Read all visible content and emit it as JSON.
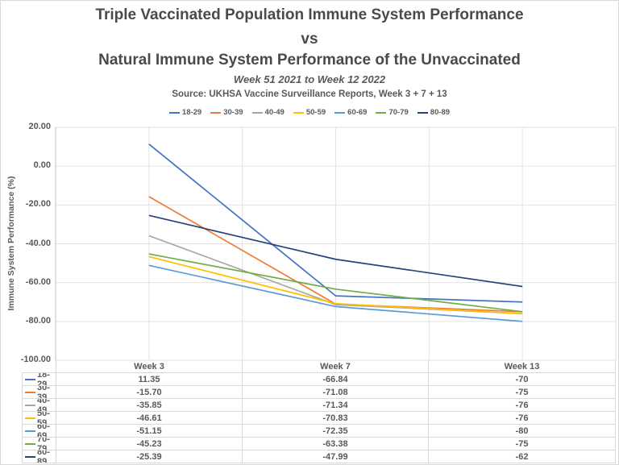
{
  "header": {
    "title_line1": "Triple Vaccinated Population Immune System Performance",
    "title_vs": "vs",
    "title_line2": "Natural Immune System Performance of the Unvaccinated",
    "subtitle": "Week 51 2021 to Week 12 2022",
    "source": "Source: UKHSA Vaccine Surveillance Reports, Week 3 + 7 + 13"
  },
  "y_axis": {
    "title": "Immune System Performance (%)",
    "ticks": [
      {
        "label": "20.00",
        "value": 20
      },
      {
        "label": "0.00",
        "value": 0
      },
      {
        "label": "-20.00",
        "value": -20
      },
      {
        "label": "-40.00",
        "value": -40
      },
      {
        "label": "-60.00",
        "value": -60
      },
      {
        "label": "-80.00",
        "value": -80
      },
      {
        "label": "-100.00",
        "value": -100
      }
    ]
  },
  "chart_data": {
    "type": "line",
    "categories": [
      "Week 3",
      "Week 7",
      "Week 13"
    ],
    "series": [
      {
        "name": "18-29",
        "color": "#4472C4",
        "values": [
          11.35,
          -66.84,
          -70
        ]
      },
      {
        "name": "30-39",
        "color": "#ED7D31",
        "values": [
          -15.7,
          -71.08,
          -75
        ]
      },
      {
        "name": "40-49",
        "color": "#A5A5A5",
        "values": [
          -35.85,
          -71.34,
          -76
        ]
      },
      {
        "name": "50-59",
        "color": "#FFC000",
        "values": [
          -46.61,
          -70.83,
          -76
        ]
      },
      {
        "name": "60-69",
        "color": "#5B9BD5",
        "values": [
          -51.15,
          -72.35,
          -80
        ]
      },
      {
        "name": "70-79",
        "color": "#70AD47",
        "values": [
          -45.23,
          -63.38,
          -75
        ]
      },
      {
        "name": "80-89",
        "color": "#264478",
        "values": [
          -25.39,
          -47.99,
          -62
        ]
      }
    ],
    "title": "Triple Vaccinated Population Immune System Performance vs Natural Immune System Performance of the Unvaccinated",
    "xlabel": "",
    "ylabel": "Immune System Performance (%)",
    "ylim": [
      -100,
      20
    ],
    "grid": true,
    "legend_position": "top"
  },
  "table": {
    "headers": [
      "Week 3",
      "Week 7",
      "Week 13"
    ],
    "rows": [
      {
        "label": "18-29",
        "cells": [
          "11.35",
          "-66.84",
          "-70"
        ]
      },
      {
        "label": "30-39",
        "cells": [
          "-15.70",
          "-71.08",
          "-75"
        ]
      },
      {
        "label": "40-49",
        "cells": [
          "-35.85",
          "-71.34",
          "-76"
        ]
      },
      {
        "label": "50-59",
        "cells": [
          "-46.61",
          "-70.83",
          "-76"
        ]
      },
      {
        "label": "60-69",
        "cells": [
          "-51.15",
          "-72.35",
          "-80"
        ]
      },
      {
        "label": "70-79",
        "cells": [
          "-45.23",
          "-63.38",
          "-75"
        ]
      },
      {
        "label": "80-89",
        "cells": [
          "-25.39",
          "-47.99",
          "-62"
        ]
      }
    ]
  },
  "colors": {
    "title_text": "#4a4a4a",
    "body_text": "#595959",
    "gridline": "#e2e2e2",
    "axis_line": "#bfbfbf",
    "table_border": "#d9d9d9"
  }
}
